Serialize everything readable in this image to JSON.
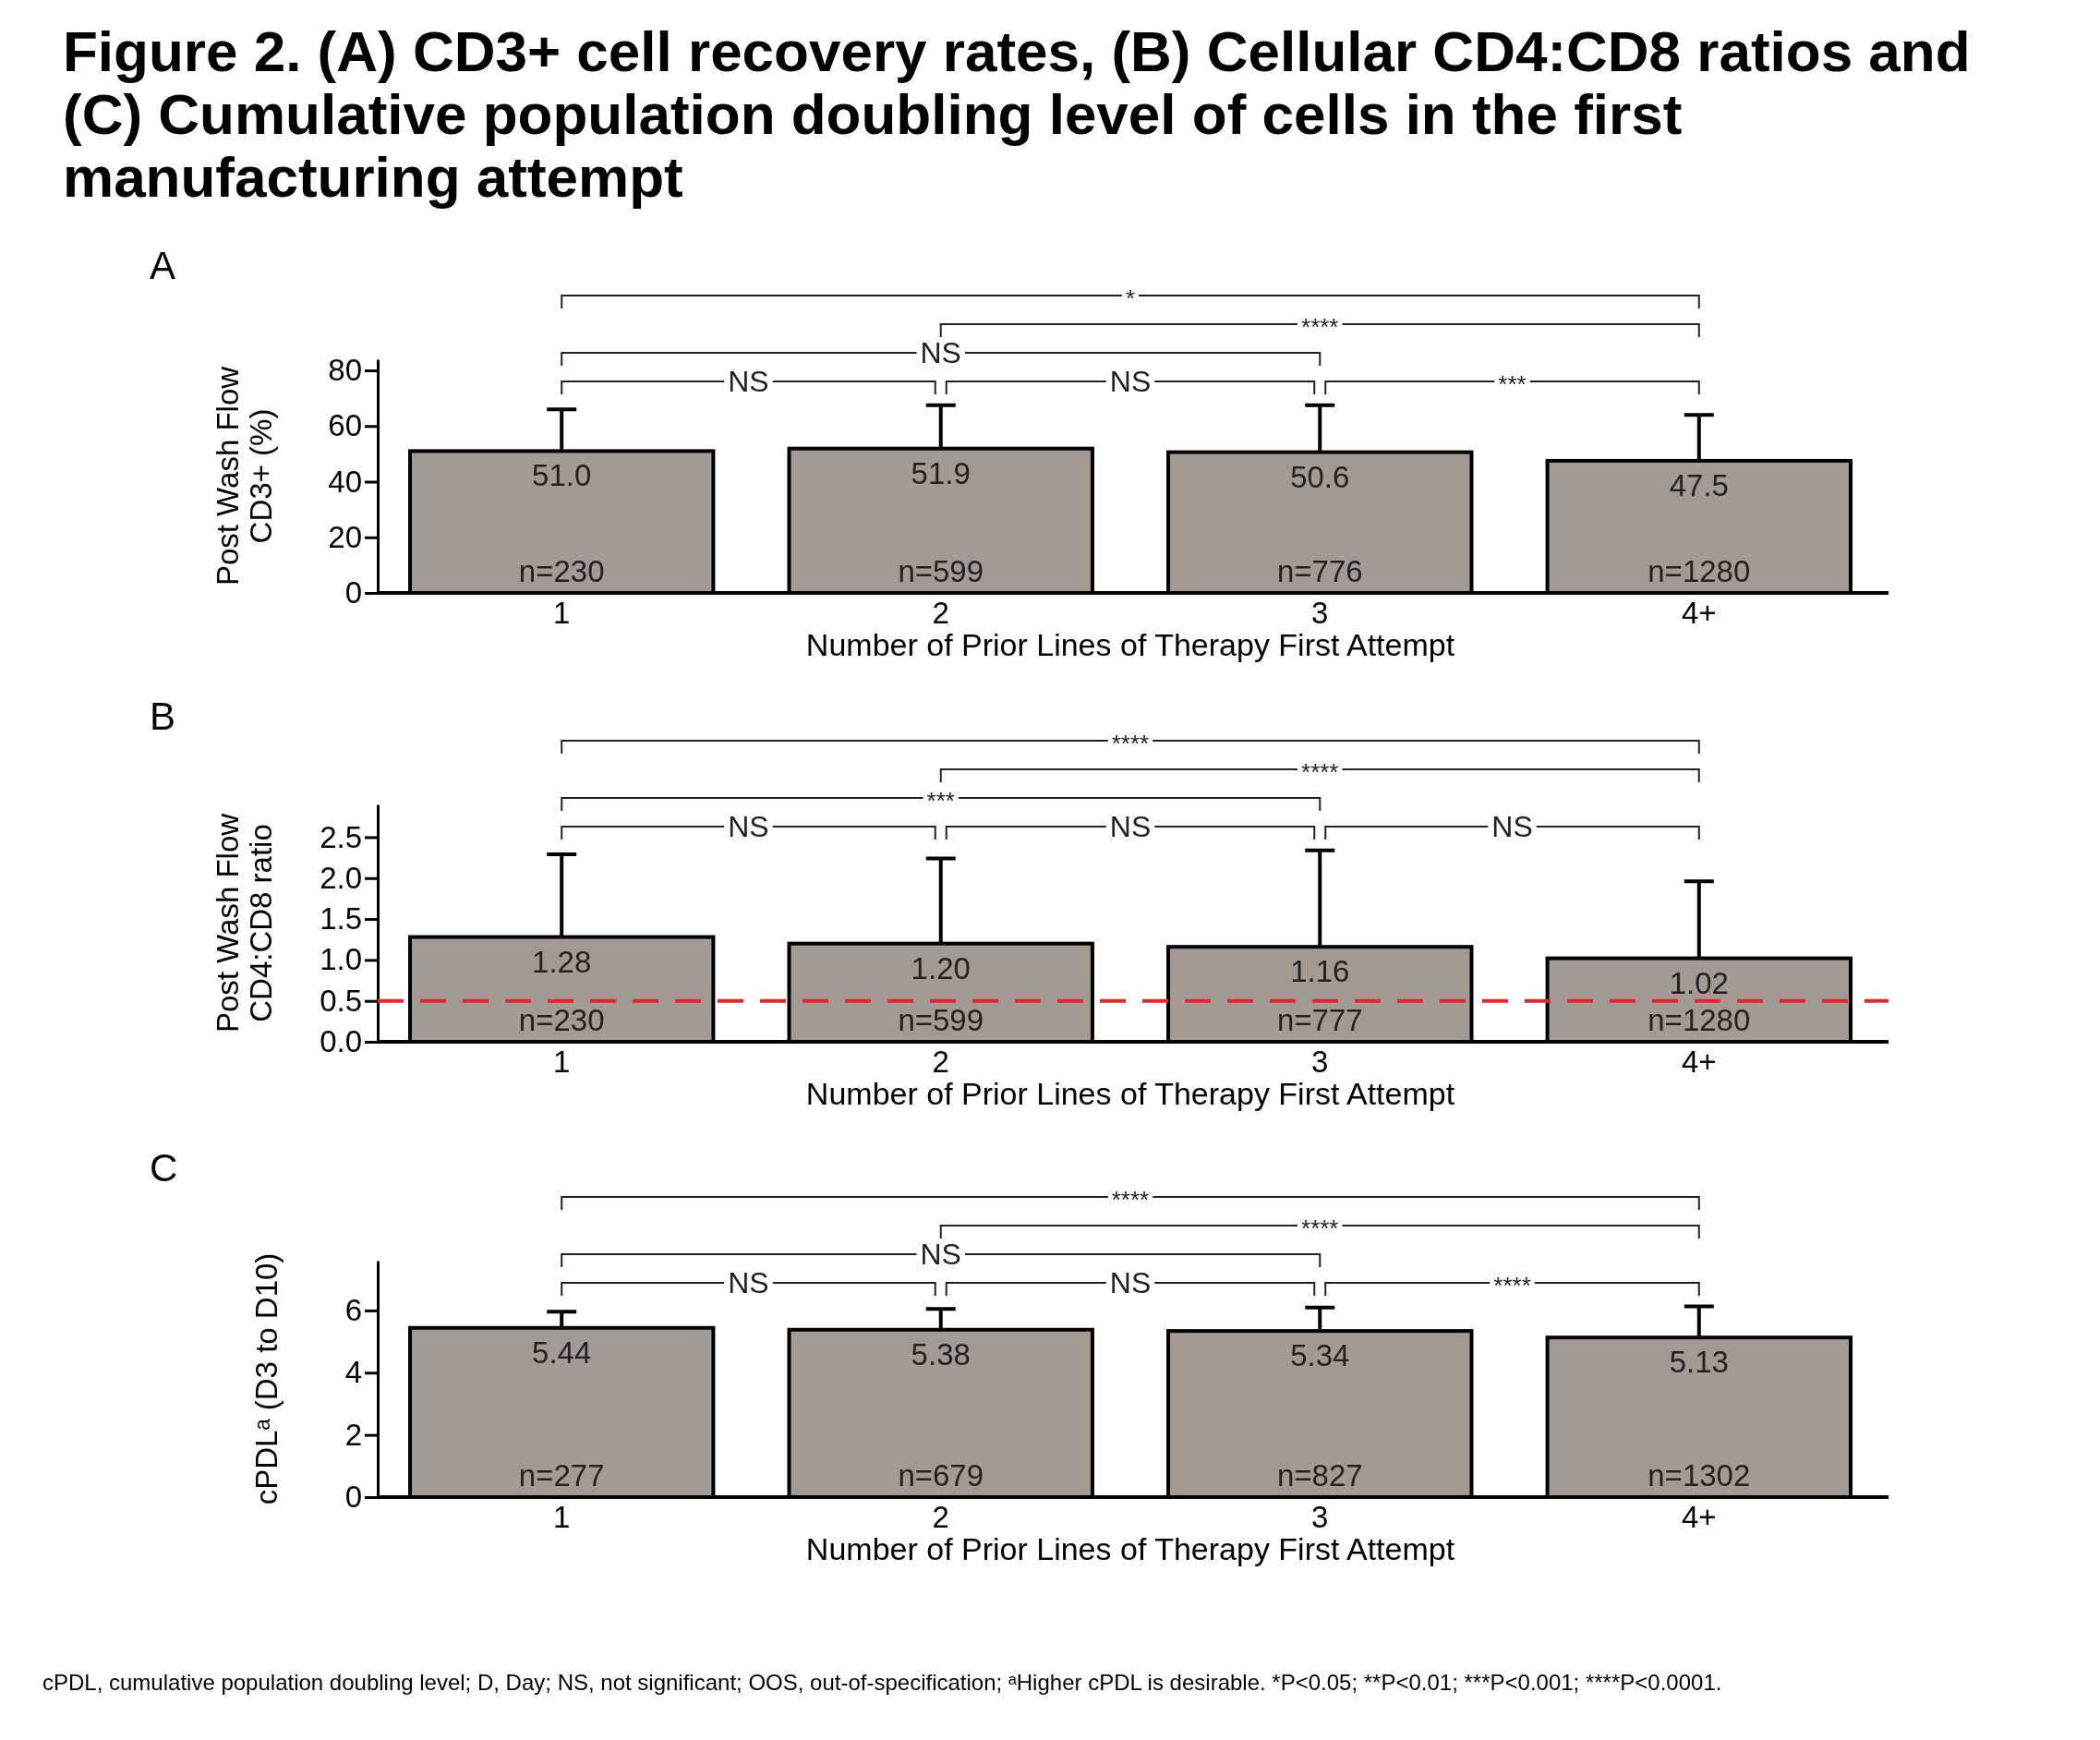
{
  "chart_data": [
    {
      "type": "bar",
      "title": "Figure 2. (A) CD3+ cell recovery rates, (B) Cellular CD4:CD8 ratios and (C) Cumulative population doubling level of cells in the first manufacturing attempt",
      "subtitle": "A",
      "xlabel": "Number of Prior Lines of Therapy First Attempt",
      "ylabel": "Post Wash Flow CD3+ (%)",
      "categories": [
        "1",
        "2",
        "3",
        "4+"
      ],
      "values": [
        51.0,
        51.9,
        50.6,
        47.5
      ],
      "value_labels": [
        "51.0",
        "51.9",
        "50.6",
        "47.5"
      ],
      "color": "#a39a94",
      "errors": [
        [
          51.0,
          66
        ],
        [
          51.9,
          67.5
        ],
        [
          50.6,
          67.5
        ],
        [
          47.5,
          64
        ]
      ],
      "ylim": [
        0,
        84
      ],
      "yticks": [
        0,
        20,
        40,
        60,
        80
      ],
      "annotations": [
        "NS",
        "NS",
        "***",
        "NS",
        "****",
        "*",
        {
          "text": "n=230",
          "x": "1",
          "y": 0
        },
        {
          "text": "n=599",
          "x": "2",
          "y": 0
        },
        {
          "text": "n=776",
          "x": "3",
          "y": 0
        },
        {
          "text": "n=1280",
          "x": "4+",
          "y": 0
        }
      ]
    },
    {
      "type": "bar",
      "title": "B",
      "xlabel": "Number of Prior Lines of Therapy First Attempt",
      "ylabel": "Post Wash Flow CD4:CD8 ratio",
      "categories": [
        "1",
        "2",
        "3",
        "4+"
      ],
      "values": [
        1.28,
        1.2,
        1.16,
        1.02
      ],
      "value_labels": [
        "1.28",
        "1.20",
        "1.16",
        "1.02"
      ],
      "color": "#a39a94",
      "errors": [
        [
          1.28,
          2.29
        ],
        [
          1.2,
          2.24
        ],
        [
          1.16,
          2.34
        ],
        [
          1.02,
          1.96
        ]
      ],
      "ylim": [
        0,
        2.9
      ],
      "yticks": [
        {
          "value": 0,
          "label": "0.0"
        },
        0.5,
        {
          "value": 1,
          "label": "1.0"
        },
        1.5,
        {
          "value": 2,
          "label": "2.0"
        },
        2.5
      ],
      "ref_lines": [
        {
          "axis": "y",
          "value": 0.5,
          "color": "#e8262a",
          "line_style": "dashed"
        }
      ],
      "annotations": [
        "NS",
        "NS",
        "NS",
        "***",
        "****",
        "****",
        {
          "text": "n=230",
          "x": "1",
          "y": 0
        },
        {
          "text": "n=599",
          "x": "2",
          "y": 0
        },
        {
          "text": "n=777",
          "x": "3",
          "y": 0
        },
        {
          "text": "n=1280",
          "x": "4+",
          "y": 0
        }
      ]
    },
    {
      "type": "bar",
      "title": "C",
      "xlabel": "Number of Prior Lines of Therapy First Attempt",
      "ylabel": "cPDLᵃ (D3 to D10)",
      "categories": [
        "1",
        "2",
        "3",
        "4+"
      ],
      "values": [
        5.44,
        5.38,
        5.34,
        5.13
      ],
      "value_labels": [
        "5.44",
        "5.38",
        "5.34",
        "5.13"
      ],
      "color": "#a39a94",
      "errors": [
        [
          5.44,
          5.96
        ],
        [
          5.38,
          6.05
        ],
        [
          5.34,
          6.09
        ],
        [
          5.13,
          6.13
        ]
      ],
      "ylim": [
        0,
        7.6
      ],
      "yticks": [
        0,
        2,
        4,
        6
      ],
      "annotations": [
        "NS",
        "NS",
        "****",
        "NS",
        "****",
        "****",
        {
          "text": "n=277",
          "x": "1",
          "y": 0
        },
        {
          "text": "n=679",
          "x": "2",
          "y": 0
        },
        {
          "text": "n=827",
          "x": "3",
          "y": 0
        },
        {
          "text": "n=1302",
          "x": "4+",
          "y": 0
        },
        "cPDL, cumulative population doubling level; D, Day; NS, not significant; OOS, out-of-specification; ᵃHigher cPDL is desirable. *P<0.05; **P<0.01; ***P<0.001; ****P<0.0001."
      ]
    }
  ]
}
